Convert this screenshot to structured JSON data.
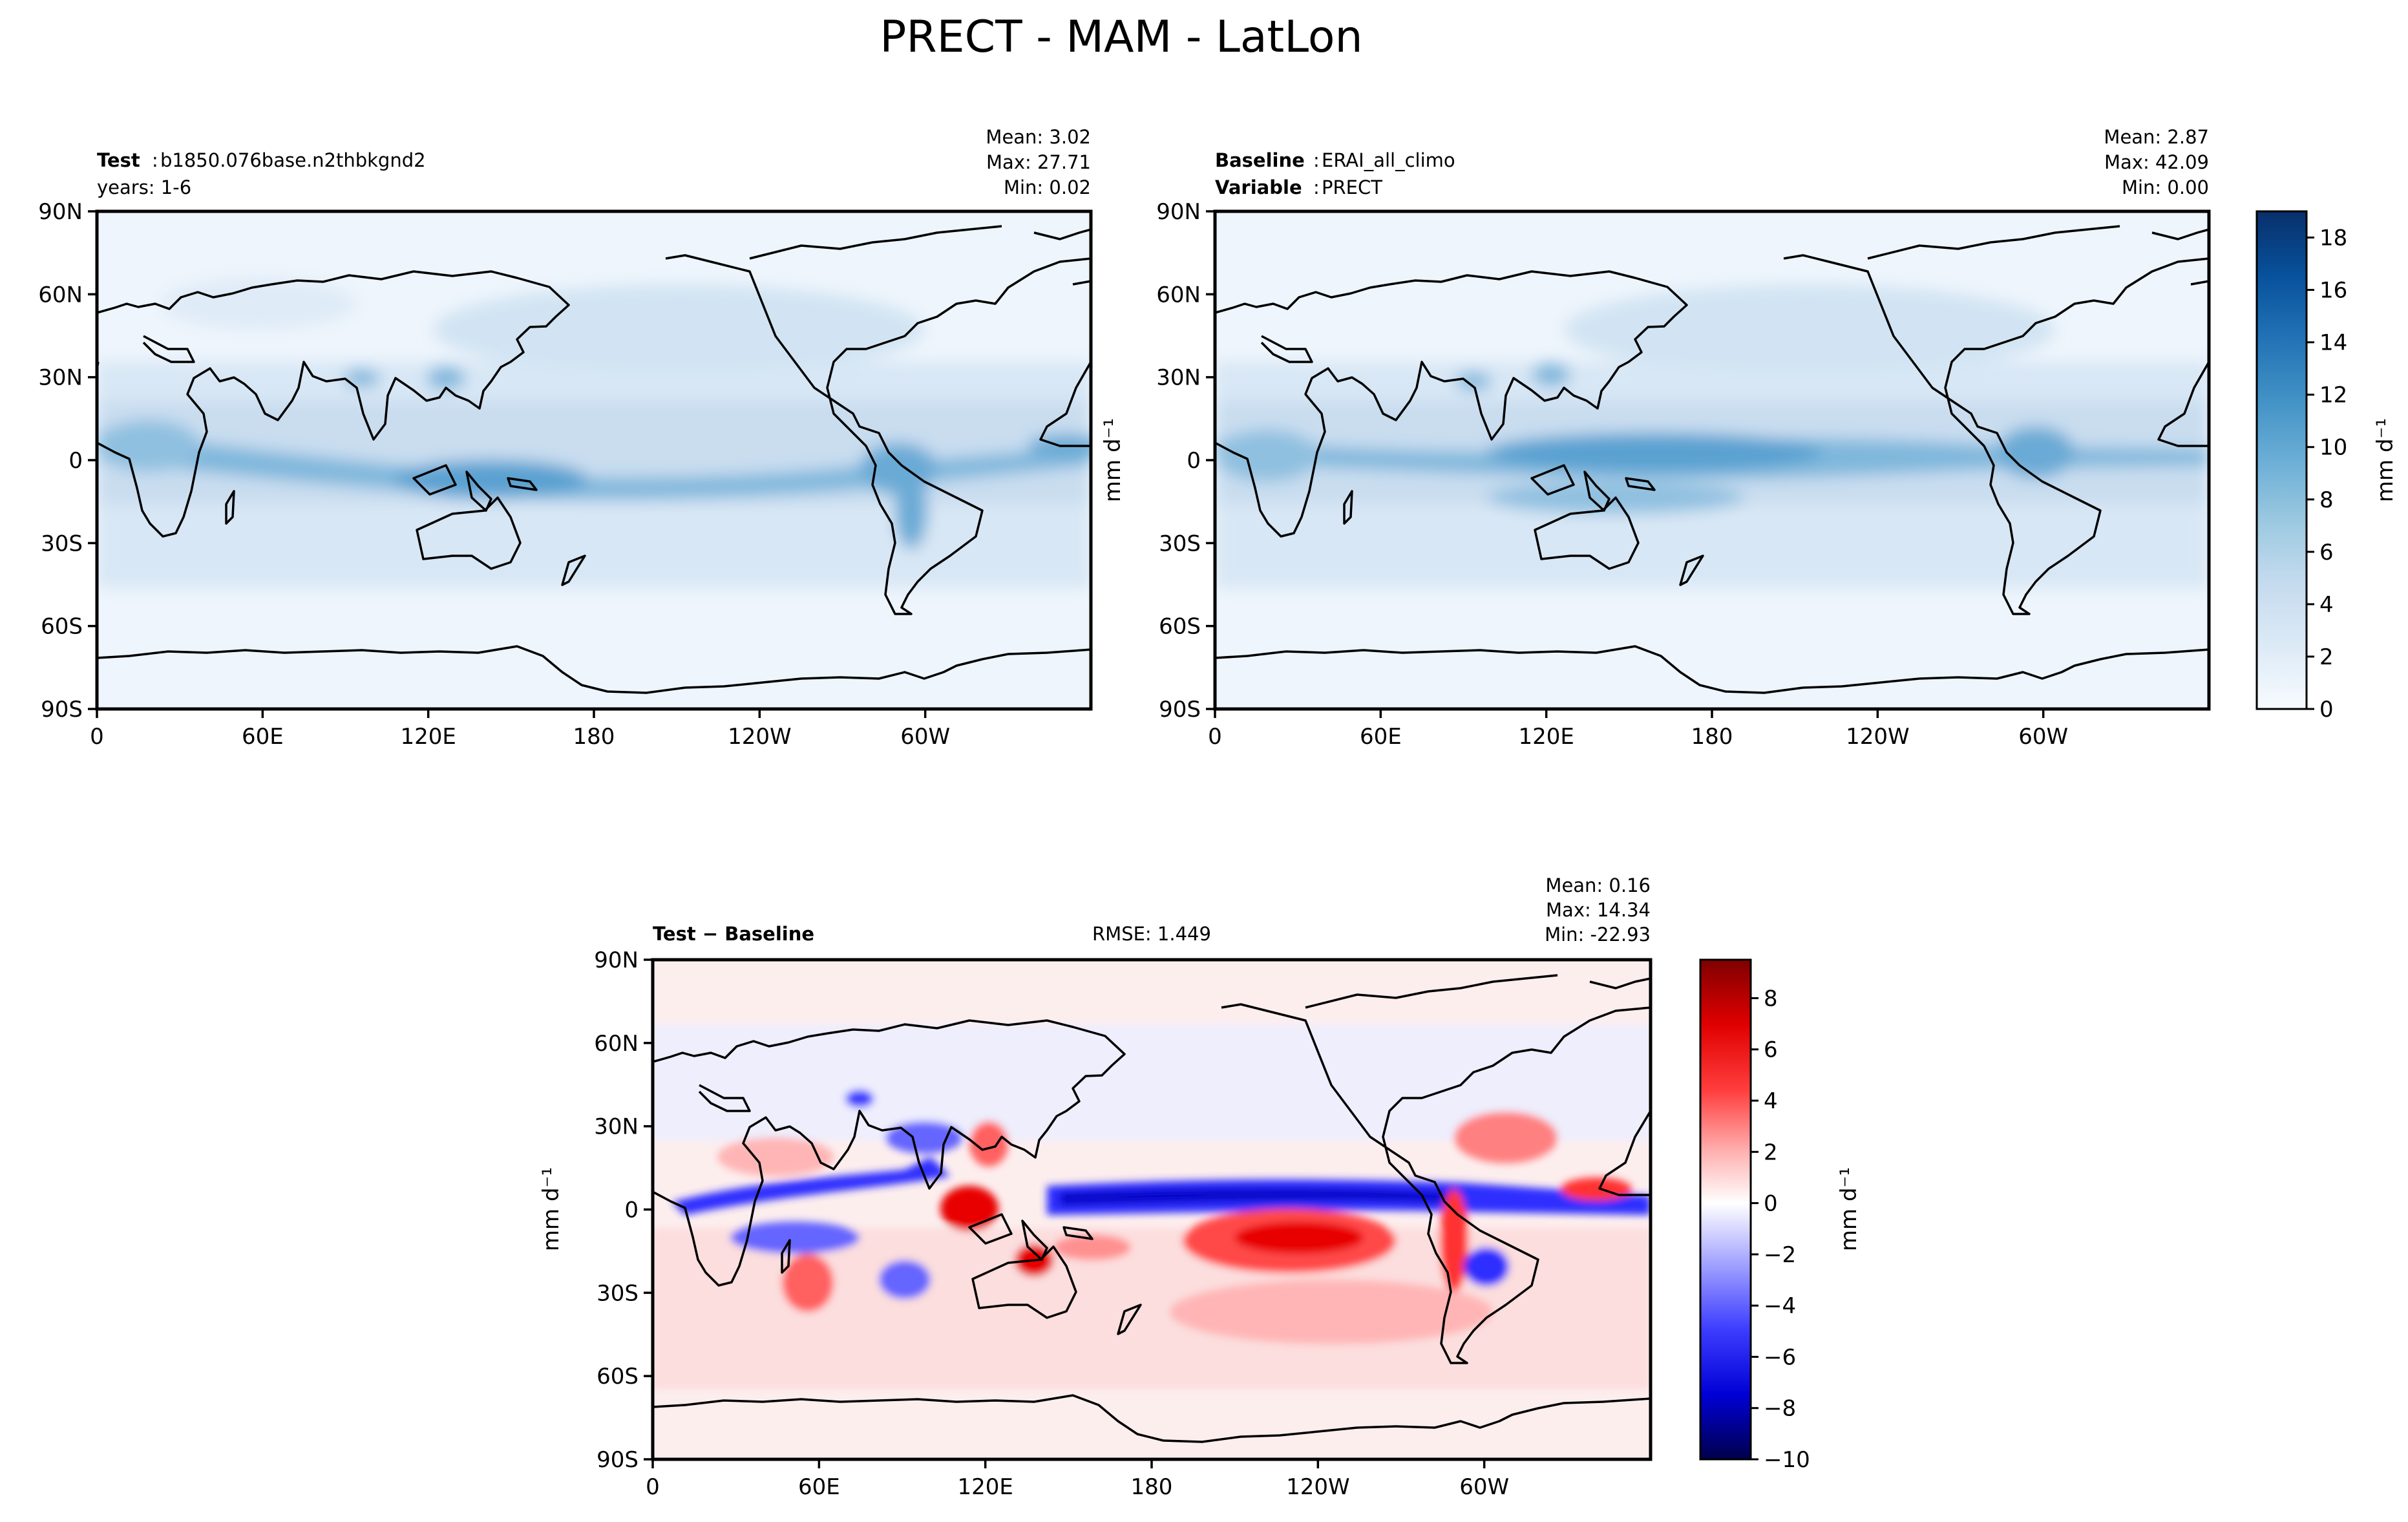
{
  "figure": {
    "title": "PRECT - MAM - LatLon"
  },
  "chart_data": [
    {
      "id": "test",
      "type": "heatmap",
      "subtitle_left": {
        "label": "Test",
        "value": "b1850.076base.n2thbkgnd2",
        "line2": "years: 1-6"
      },
      "stats": [
        "Mean:  3.02",
        "Max: 27.71",
        "Min:  0.02"
      ],
      "x_ticks": [
        "0",
        "60E",
        "120E",
        "180",
        "120W",
        "60W"
      ],
      "y_ticks": [
        "90N",
        "60N",
        "30N",
        "0",
        "30S",
        "60S",
        "90S"
      ],
      "xlim": [
        0,
        360
      ],
      "ylim": [
        -90,
        90
      ],
      "colormap": "Blues",
      "ylabel": ""
    },
    {
      "id": "baseline",
      "type": "heatmap",
      "subtitle_left": {
        "label": "Baseline",
        "value": "ERAI_all_climo",
        "label2": "Variable",
        "value2": "PRECT"
      },
      "stats": [
        "Mean:  2.87",
        "Max: 42.09",
        "Min:  0.00"
      ],
      "x_ticks": [
        "0",
        "60E",
        "120E",
        "180",
        "120W",
        "60W"
      ],
      "y_ticks": [
        "90N",
        "60N",
        "30N",
        "0",
        "30S",
        "60S",
        "90S"
      ],
      "xlim": [
        0,
        360
      ],
      "ylim": [
        -90,
        90
      ],
      "colormap": "Blues",
      "ylabel": "mm d⁻¹"
    },
    {
      "id": "difference",
      "type": "heatmap",
      "subtitle_left": {
        "label": "Test − Baseline"
      },
      "subtitle_center": "RMSE: 1.449",
      "stats": [
        "Mean:  0.16",
        "Max: 14.34",
        "Min: -22.93"
      ],
      "x_ticks": [
        "0",
        "60E",
        "120E",
        "180",
        "120W",
        "60W"
      ],
      "y_ticks": [
        "90N",
        "60N",
        "30N",
        "0",
        "30S",
        "60S",
        "90S"
      ],
      "xlim": [
        0,
        360
      ],
      "ylim": [
        -90,
        90
      ],
      "colormap": "seismic",
      "ylabel": "mm d⁻¹"
    }
  ],
  "colorbars": {
    "top": {
      "range": [
        0,
        19
      ],
      "ticks": [
        "0",
        "2",
        "4",
        "6",
        "8",
        "10",
        "12",
        "14",
        "16",
        "18"
      ],
      "tick_values": [
        0,
        2,
        4,
        6,
        8,
        10,
        12,
        14,
        16,
        18
      ],
      "label": "mm d⁻¹",
      "colors": [
        "#f7fbff",
        "#deebf7",
        "#c6dbef",
        "#9ecae1",
        "#6baed6",
        "#4292c6",
        "#2171b5",
        "#08519c",
        "#08306b"
      ]
    },
    "bottom": {
      "range": [
        -10,
        9.5
      ],
      "ticks": [
        "8",
        "6",
        "4",
        "2",
        "0",
        "−2",
        "−4",
        "−6",
        "−8",
        "−10"
      ],
      "tick_values": [
        8,
        6,
        4,
        2,
        0,
        -2,
        -4,
        -6,
        -8,
        -10
      ],
      "label": "mm d⁻¹",
      "colors": [
        "#00004c",
        "#0000d6",
        "#3d3dff",
        "#a9a9ff",
        "#ffffff",
        "#ffadad",
        "#ff3d3d",
        "#e00000",
        "#800000"
      ]
    }
  }
}
